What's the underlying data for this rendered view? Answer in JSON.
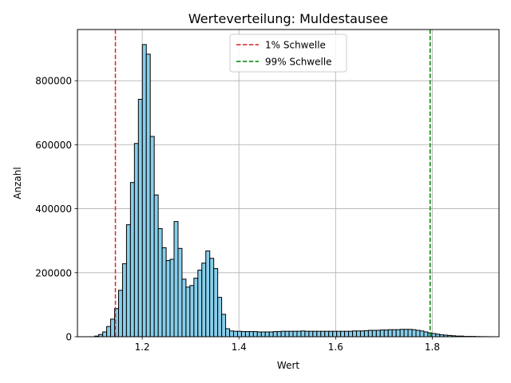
{
  "chart_data": {
    "type": "bar",
    "title": "Werteverteilung: Muldestausee",
    "xlabel": "Wert",
    "ylabel": "Anzahl",
    "xlim": [
      1.066,
      1.938
    ],
    "ylim": [
      0,
      960000
    ],
    "xticks": [
      1.2,
      1.4,
      1.6,
      1.8
    ],
    "yticks": [
      0,
      200000,
      400000,
      600000,
      800000
    ],
    "grid": true,
    "legend_position": "top-center",
    "bar_color": "#87ceeb",
    "bar_edge_color": "#000000",
    "bin_start": 1.1018,
    "bin_width": 0.008203,
    "values": [
      2000,
      7000,
      15000,
      32000,
      55000,
      88000,
      145000,
      228000,
      350000,
      482000,
      604000,
      742000,
      913000,
      883000,
      626000,
      443000,
      338000,
      278000,
      238000,
      242000,
      360000,
      276000,
      180000,
      155000,
      160000,
      183000,
      208000,
      230000,
      268000,
      245000,
      213000,
      123000,
      70000,
      25000,
      18000,
      17000,
      17000,
      16000,
      16000,
      16000,
      16000,
      15000,
      15000,
      15000,
      15000,
      16000,
      16000,
      17000,
      17000,
      17000,
      17000,
      17000,
      18000,
      17000,
      17000,
      17000,
      17000,
      17000,
      17000,
      17000,
      17000,
      17000,
      17000,
      17000,
      17000,
      18000,
      18000,
      18000,
      19000,
      20000,
      20000,
      20000,
      21000,
      21000,
      22000,
      22000,
      22000,
      23000,
      23000,
      23000,
      22000,
      20000,
      18000,
      15000,
      12000,
      10000,
      8000,
      6000,
      5000,
      4000,
      3000,
      2000,
      2000,
      1000,
      1000,
      1000,
      500,
      300,
      200,
      100
    ],
    "thresholds": [
      {
        "name": "1% Schwelle",
        "x": 1.1445,
        "color": "#d62728",
        "style": "dashed"
      },
      {
        "name": "99% Schwelle",
        "x": 1.7955,
        "color": "#008000",
        "style": "dashed"
      }
    ]
  }
}
